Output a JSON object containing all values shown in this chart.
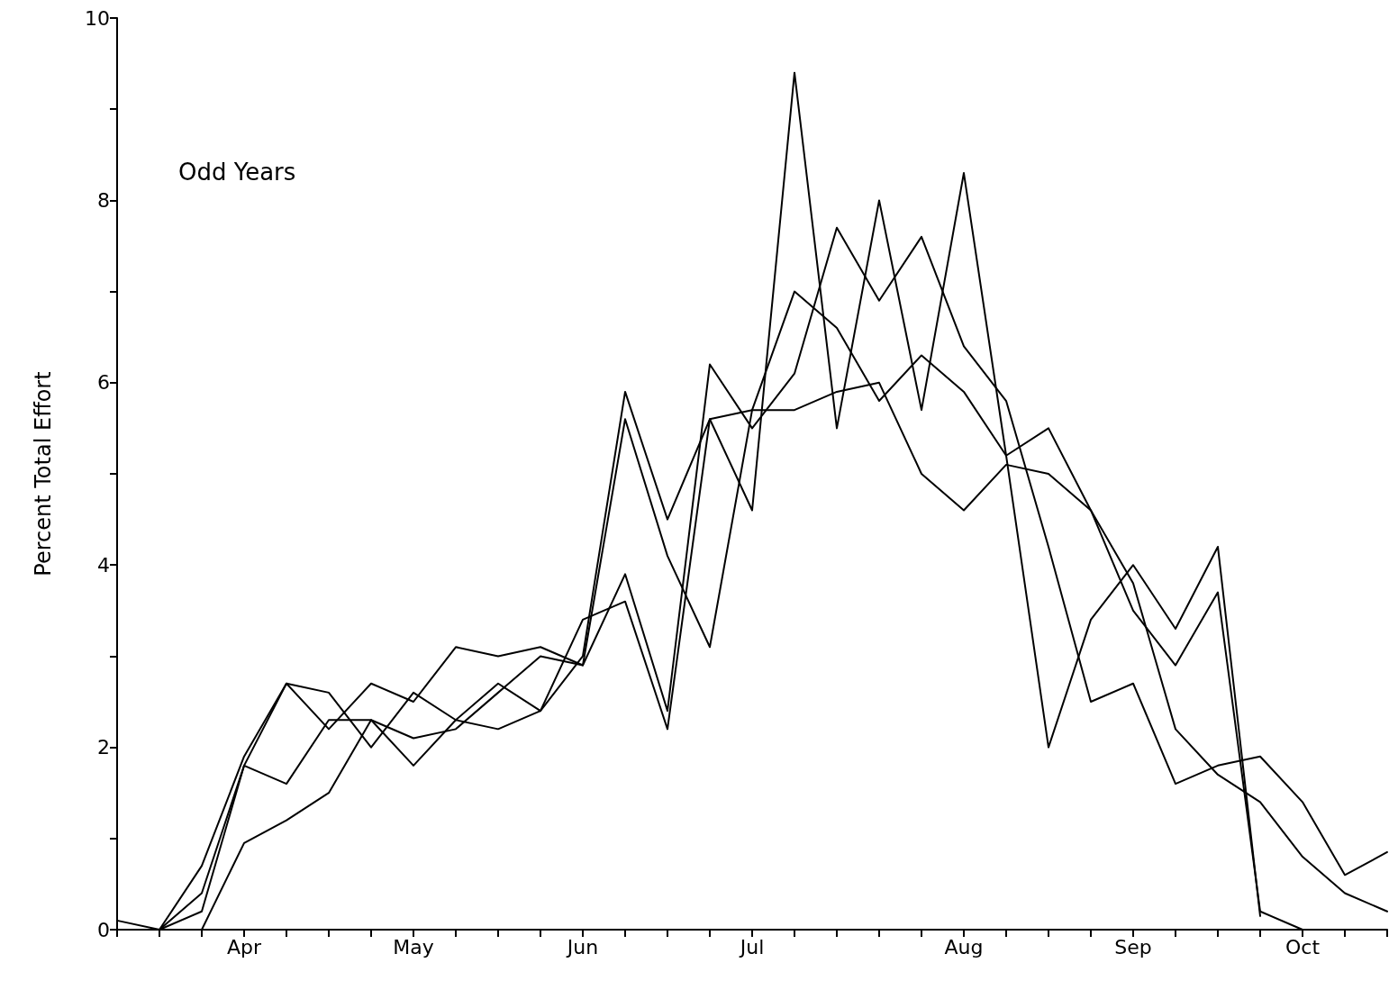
{
  "chart_data": {
    "type": "line",
    "ylabel": "Percent Total Effort",
    "annotations": [
      "Odd Years"
    ],
    "categories": [
      null,
      null,
      null,
      "Apr",
      null,
      null,
      null,
      "May",
      null,
      null,
      null,
      "Jun",
      null,
      null,
      null,
      "Jul",
      null,
      null,
      null,
      null,
      "Aug",
      null,
      null,
      null,
      "Sep",
      null,
      null,
      null,
      "Oct",
      null,
      null
    ],
    "ylim": [
      0,
      10
    ],
    "yticks": [
      0,
      {
        "value": 1,
        "label": null
      },
      2,
      {
        "value": 3,
        "label": null
      },
      4,
      {
        "value": 5,
        "label": null
      },
      6,
      {
        "value": 7,
        "label": null
      },
      8,
      {
        "value": 9,
        "label": null
      },
      10
    ],
    "grid": false,
    "marker": "none",
    "line_style": "solid",
    "series": [
      {
        "color": "#000000",
        "values": [
          0.1,
          0,
          0.7,
          1.9,
          2.7,
          2.6,
          2.0,
          2.6,
          2.3,
          2.2,
          2.4,
          3.0,
          5.9,
          4.5,
          5.6,
          4.6,
          9.4,
          5.5,
          8.0,
          5.7,
          8.3,
          5.2,
          2.0,
          3.4,
          4.0,
          3.3,
          4.2,
          0.15,
          null,
          null,
          null
        ]
      },
      {
        "color": "#000000",
        "values": [
          null,
          0,
          0.4,
          1.8,
          1.6,
          2.3,
          2.3,
          2.1,
          2.2,
          2.6,
          3.0,
          2.9,
          5.6,
          4.1,
          3.1,
          5.7,
          7.0,
          6.6,
          5.8,
          6.3,
          5.9,
          5.2,
          5.5,
          4.6,
          3.5,
          2.9,
          3.7,
          0.2,
          0,
          null,
          null
        ]
      },
      {
        "color": "#000000",
        "values": [
          null,
          0,
          0.2,
          1.8,
          2.7,
          2.2,
          2.7,
          2.5,
          3.1,
          3.0,
          3.1,
          2.9,
          3.9,
          2.4,
          6.2,
          5.5,
          6.1,
          7.7,
          6.9,
          7.6,
          6.4,
          5.8,
          4.2,
          2.5,
          2.7,
          1.6,
          1.8,
          1.9,
          1.4,
          0.6,
          0.85
        ]
      },
      {
        "color": "#000000",
        "values": [
          null,
          0,
          0,
          0.95,
          1.2,
          1.5,
          2.3,
          1.8,
          2.3,
          2.7,
          2.4,
          3.4,
          3.6,
          2.2,
          5.6,
          5.7,
          5.7,
          5.9,
          6.0,
          5.0,
          4.6,
          5.1,
          5.0,
          4.6,
          3.8,
          2.2,
          1.7,
          1.4,
          0.8,
          0.4,
          0.2
        ]
      }
    ]
  }
}
